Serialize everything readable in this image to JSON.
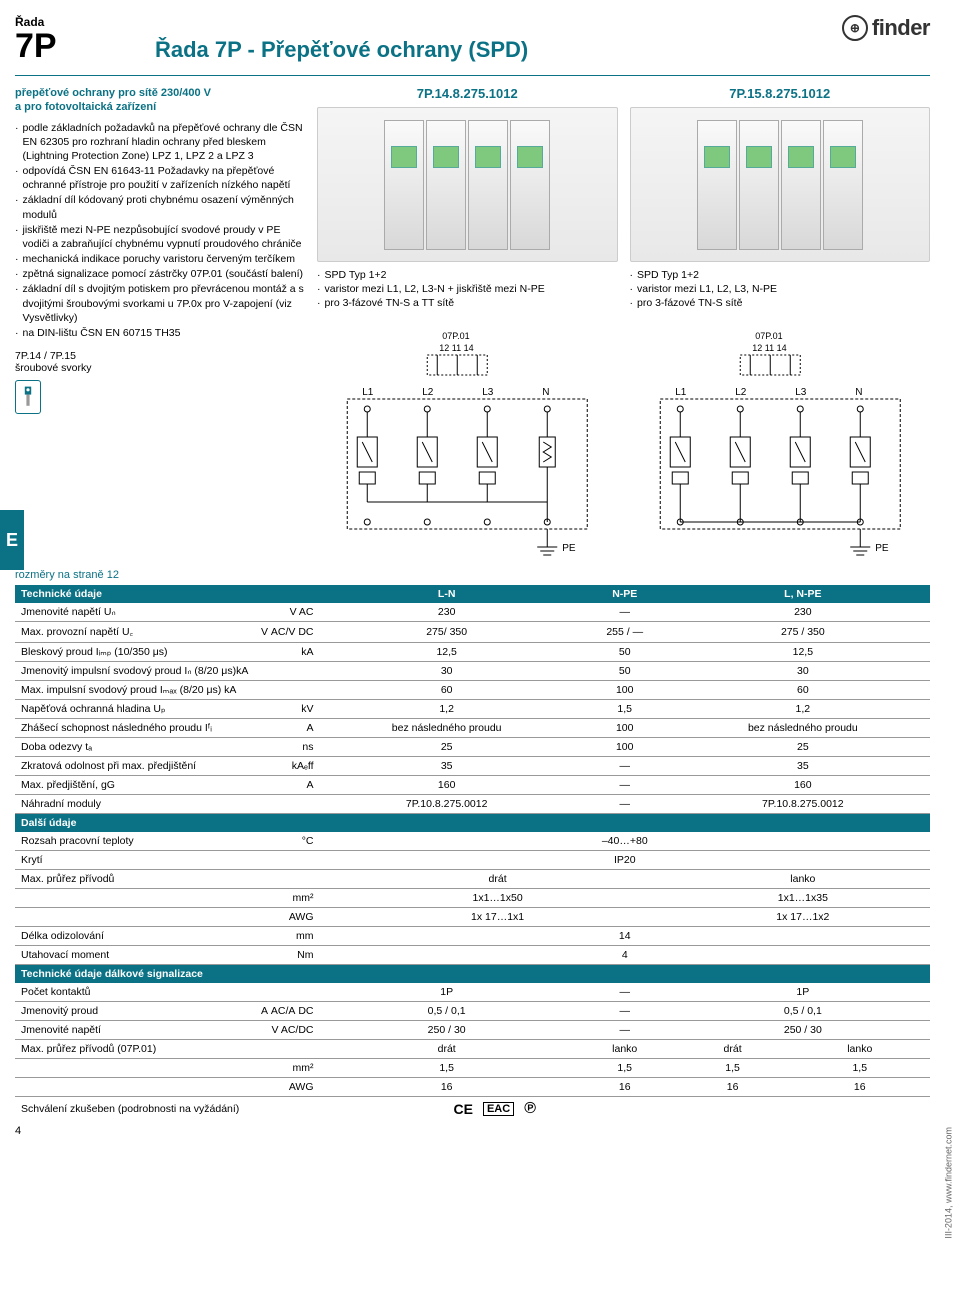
{
  "header": {
    "series_label": "Řada",
    "series_num": "7P",
    "title": "Řada 7P - Přepěťové ochrany (SPD)",
    "logo_text": "finder"
  },
  "intro": {
    "title_line1": "přepěťové ochrany pro sítě 230/400 V",
    "title_line2": "a pro fotovoltaická zařízení",
    "bullets": [
      "podle základních požadavků na přepěťové ochrany dle ČSN EN 62305 pro rozhraní hladin ochrany před bleskem (Lightning Protection Zone) LPZ 1, LPZ 2 a LPZ 3",
      "odpovídá ČSN EN 61643-11 Požadavky na přepěťové ochranné přístroje pro použití v zařízeních nízkého napětí",
      "základní díl kódovaný proti chybnému osazení výměnných modulů",
      "jiskřiště mezi N-PE nezpůsobující svodové proudy v PE vodiči a zabraňující chybnému vypnutí proudového chrániče",
      "mechanická indikace poruchy varistoru červeným terčíkem",
      "zpětná signalizace pomocí zástrčky 07P.01 (součástí balení)",
      "základní díl s dvojitým potiskem pro převrácenou montáž a s dvojitými šroubovými svorkami u 7P.0x pro V-zapojení (viz Vysvětlivky)",
      "na DIN-lištu ČSN EN 60715 TH35"
    ],
    "terminals_label": "7P.14 / 7P.15",
    "terminals_sub": "šroubové svorky",
    "tab_letter": "E"
  },
  "products": [
    {
      "code": "7P.14.8.275.1012",
      "desc": [
        "SPD Typ 1+2",
        "varistor mezi L1, L2, L3-N + jiskřiště mezi N-PE",
        "pro 3-fázové TN-S a TT sítě"
      ],
      "diag_top": "07P.01",
      "diag_top2": "12 11 14",
      "diag_labels": [
        "L1",
        "L2",
        "L3",
        "N"
      ],
      "diag_pe": "PE"
    },
    {
      "code": "7P.15.8.275.1012",
      "desc": [
        "SPD Typ 1+2",
        "varistor mezi L1, L2, L3, N-PE",
        "pro 3-fázové TN-S sítě"
      ],
      "diag_top": "07P.01",
      "diag_top2": "12 11 14",
      "diag_labels": [
        "L1",
        "L2",
        "L3",
        "N"
      ],
      "diag_pe": "PE"
    }
  ],
  "dims_note": "rozměry na straně 12",
  "spec": {
    "header": {
      "l": "Technické údaje",
      "c1": "L-N",
      "c2": "N-PE",
      "c3": "L, N-PE"
    },
    "rows": [
      {
        "l": "Jmenovité napětí Uₙ",
        "u": "V AC",
        "v": [
          "230",
          "—",
          "230"
        ]
      },
      {
        "l": "Max. provozní napětí U꜀",
        "u": "V AC/V DC",
        "v": [
          "275/ 350",
          "255 / —",
          "275 / 350"
        ]
      },
      {
        "l": "Bleskový proud Iᵢₘₚ (10/350 μs)",
        "u": "kA",
        "v": [
          "12,5",
          "50",
          "12,5"
        ]
      },
      {
        "l": "Jmenovitý impulsní svodový proud Iₙ (8/20 μs)kA",
        "u": "",
        "v": [
          "30",
          "50",
          "30"
        ]
      },
      {
        "l": "Max. impulsní svodový proud Iₘₐₓ (8/20 μs) kA",
        "u": "",
        "v": [
          "60",
          "100",
          "60"
        ]
      },
      {
        "l": "Napěťová ochranná hladina Uₚ",
        "u": "kV",
        "v": [
          "1,2",
          "1,5",
          "1,2"
        ]
      },
      {
        "l": "Zhášecí schopnost následného proudu Iᶠᵢ",
        "u": "A",
        "v": [
          "bez následného proudu",
          "100",
          "bez následného proudu"
        ]
      },
      {
        "l": "Doba odezvy tₐ",
        "u": "ns",
        "v": [
          "25",
          "100",
          "25"
        ]
      },
      {
        "l": "Zkratová odolnost při max. předjištění",
        "u": "kAₑff",
        "v": [
          "35",
          "—",
          "35"
        ]
      },
      {
        "l": "Max. předjištění, gG",
        "u": "A",
        "v": [
          "160",
          "—",
          "160"
        ]
      },
      {
        "l": "Náhradní moduly",
        "u": "",
        "v": [
          "7P.10.8.275.0012",
          "—",
          "7P.10.8.275.0012"
        ]
      }
    ],
    "header2": "Další údaje",
    "rows2": [
      {
        "l": "Rozsah pracovní teploty",
        "u": "°C",
        "v": [
          "–40…+80"
        ],
        "span": 3
      },
      {
        "l": "Krytí",
        "u": "",
        "v": [
          "IP20"
        ],
        "span": 3
      }
    ],
    "wire_header": {
      "l": "Max. průřez přívodů",
      "c1": "drát",
      "c2": "lanko"
    },
    "wire_rows": [
      {
        "u": "mm²",
        "v": [
          "1x1…1x50",
          "1x1…1x35"
        ]
      },
      {
        "u": "AWG",
        "v": [
          "1x 17…1x1",
          "1x 17…1x2"
        ]
      }
    ],
    "rows3": [
      {
        "l": "Délka odizolování",
        "u": "mm",
        "v": [
          "14"
        ],
        "span": 3
      },
      {
        "l": "Utahovací moment",
        "u": "Nm",
        "v": [
          "4"
        ],
        "span": 3
      }
    ],
    "header3": "Technické údaje dálkové signalizace",
    "rows4": [
      {
        "l": "Počet kontaktů",
        "u": "",
        "v": [
          "1P",
          "—",
          "1P"
        ]
      },
      {
        "l": "Jmenovitý proud",
        "u": "A AC/A DC",
        "v": [
          "0,5 / 0,1",
          "—",
          "0,5 / 0,1"
        ]
      },
      {
        "l": "Jmenovité napětí",
        "u": "V AC/DC",
        "v": [
          "250 / 30",
          "—",
          "250 / 30"
        ]
      }
    ],
    "wire2_header": {
      "l": "Max. průřez přívodů (07P.01)",
      "c": [
        "drát",
        "lanko",
        "",
        "drát",
        "lanko"
      ]
    },
    "wire2_rows": [
      {
        "u": "mm²",
        "v": [
          "1,5",
          "1,5",
          "—",
          "1,5",
          "1,5"
        ]
      },
      {
        "u": "AWG",
        "v": [
          "16",
          "16",
          "—",
          "16",
          "16"
        ]
      }
    ],
    "approval": "Schválení zkušeben (podrobnosti na vyžádání)"
  },
  "page_num": "4",
  "side_note": "III-2014, www.findernet.com"
}
